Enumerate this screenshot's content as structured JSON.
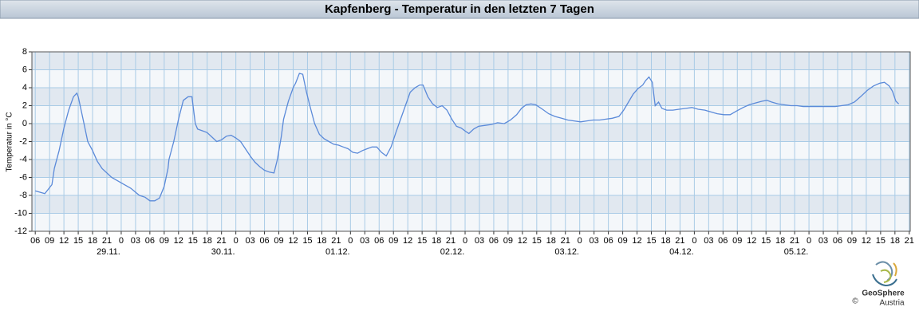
{
  "chart_data": {
    "type": "line",
    "title": "Kapfenberg - Temperatur in den letzten 7 Tagen",
    "ylabel": "Temperatur in °C",
    "color": "#5b8ad9",
    "grid": true,
    "x": [
      -18,
      -16,
      -14.5,
      -14,
      -13,
      -12,
      -11,
      -10,
      -9.3,
      -9,
      -8,
      -7,
      -6,
      -5,
      -4,
      -2,
      0,
      2,
      3.8,
      5,
      6,
      7,
      8,
      9,
      9.8,
      10,
      11,
      12,
      13,
      14,
      14.8,
      15.5,
      16,
      17,
      18,
      19,
      20,
      21,
      22,
      23,
      24,
      25,
      26,
      27,
      28,
      29,
      30,
      31,
      32,
      32.7,
      33.5,
      34,
      35,
      36,
      36.5,
      37.3,
      38,
      38.8,
      39.5,
      40.5,
      41.5,
      42.5,
      43.5,
      44.5,
      45.5,
      46.5,
      47.5,
      48.5,
      49.5,
      50.5,
      51.5,
      52.5,
      53.5,
      54.5,
      55.5,
      56.5,
      57.5,
      58.5,
      59.5,
      60.5,
      61.5,
      62.5,
      63.2,
      64.2,
      65.2,
      66.2,
      67.2,
      68.2,
      69.2,
      70.2,
      71.2,
      72.2,
      72.8,
      73.8,
      74.8,
      76.2,
      77.5,
      78.8,
      80.2,
      81.5,
      82.8,
      83.8,
      84.8,
      85.8,
      86.8,
      88.2,
      89.5,
      90.8,
      92.2,
      93.5,
      94.8,
      96.2,
      97.5,
      98.8,
      100.2,
      101.5,
      102.8,
      104.2,
      105.2,
      106.2,
      107.2,
      108.2,
      109.2,
      109.8,
      110.5,
      111.2,
      111.8,
      112.5,
      113.2,
      114.2,
      115.5,
      116.8,
      118.2,
      119.5,
      120.8,
      122.2,
      123.5,
      124.8,
      126.2,
      127.5,
      128.8,
      130.2,
      131.5,
      132.8,
      134.2,
      135.2,
      136.2,
      137.5,
      138.8,
      140.2,
      141.5,
      142.8,
      144.2,
      145.5,
      146.8,
      148.2,
      149.5,
      150.8,
      152.2,
      153.5,
      154.8,
      156.2,
      157.5,
      158.8,
      159.8,
      160.8,
      161.5,
      162.2,
      162.8
    ],
    "values": [
      -7.5,
      -7.8,
      -6.8,
      -5,
      -3,
      -0.5,
      1.5,
      3,
      3.4,
      3,
      0.5,
      -2,
      -3,
      -4.2,
      -5,
      -6,
      -6.6,
      -7.2,
      -8,
      -8.2,
      -8.6,
      -8.6,
      -8.3,
      -7,
      -5,
      -4,
      -2,
      0.5,
      2.6,
      3,
      3,
      0,
      -0.6,
      -0.8,
      -1,
      -1.5,
      -2,
      -1.8,
      -1.4,
      -1.3,
      -1.6,
      -2,
      -2.8,
      -3.6,
      -4.3,
      -4.8,
      -5.2,
      -5.4,
      -5.5,
      -4,
      -1.5,
      0.5,
      2.5,
      4,
      4.5,
      5.6,
      5.5,
      3.5,
      2,
      0,
      -1.2,
      -1.7,
      -2,
      -2.3,
      -2.4,
      -2.6,
      -2.8,
      -3.2,
      -3.3,
      -3,
      -2.8,
      -2.6,
      -2.6,
      -3.2,
      -3.6,
      -2.6,
      -1,
      0.5,
      2,
      3.5,
      4,
      4.3,
      4.3,
      3,
      2.2,
      1.8,
      2,
      1.5,
      0.5,
      -0.3,
      -0.5,
      -0.9,
      -1.1,
      -0.6,
      -0.3,
      -0.2,
      -0.1,
      0.1,
      0,
      0.4,
      1,
      1.7,
      2.1,
      2.2,
      2.1,
      1.6,
      1.1,
      0.8,
      0.6,
      0.4,
      0.3,
      0.2,
      0.3,
      0.4,
      0.4,
      0.5,
      0.6,
      0.8,
      1.5,
      2.4,
      3.3,
      3.9,
      4.3,
      4.8,
      5.2,
      4.6,
      2,
      2.4,
      1.7,
      1.5,
      1.5,
      1.6,
      1.7,
      1.8,
      1.6,
      1.5,
      1.3,
      1.1,
      1,
      1,
      1.4,
      1.8,
      2.1,
      2.3,
      2.5,
      2.6,
      2.4,
      2.2,
      2.1,
      2,
      2,
      1.9,
      1.9,
      1.9,
      1.9,
      1.9,
      1.9,
      2,
      2.1,
      2.4,
      3,
      3.7,
      4.2,
      4.5,
      4.6,
      4.2,
      3.6,
      2.5,
      2.2
    ],
    "xlim": [
      -18.7,
      165.2
    ],
    "ylim": [
      -12,
      8
    ],
    "yticks": [
      -12,
      -10,
      -8,
      -6,
      -4,
      -2,
      0,
      2,
      4,
      6,
      8
    ],
    "xticks": [
      {
        "value": -18,
        "label": "06"
      },
      {
        "value": -15,
        "label": "09"
      },
      {
        "value": -12,
        "label": "12"
      },
      {
        "value": -9,
        "label": "15"
      },
      {
        "value": -6,
        "label": "18"
      },
      {
        "value": -3,
        "label": "21"
      },
      {
        "value": 0,
        "label": "0"
      },
      {
        "value": 3,
        "label": "03"
      },
      {
        "value": 6,
        "label": "06"
      },
      {
        "value": 9,
        "label": "09"
      },
      {
        "value": 12,
        "label": "12"
      },
      {
        "value": 15,
        "label": "15"
      },
      {
        "value": 18,
        "label": "18"
      },
      {
        "value": 21,
        "label": "21"
      },
      {
        "value": 24,
        "label": "0"
      },
      {
        "value": 27,
        "label": "03"
      },
      {
        "value": 30,
        "label": "06"
      },
      {
        "value": 33,
        "label": "09"
      },
      {
        "value": 36,
        "label": "12"
      },
      {
        "value": 39,
        "label": "15"
      },
      {
        "value": 42,
        "label": "18"
      },
      {
        "value": 45,
        "label": "21"
      },
      {
        "value": 48,
        "label": "0"
      },
      {
        "value": 51,
        "label": "03"
      },
      {
        "value": 54,
        "label": "06"
      },
      {
        "value": 57,
        "label": "09"
      },
      {
        "value": 60,
        "label": "12"
      },
      {
        "value": 63,
        "label": "15"
      },
      {
        "value": 66,
        "label": "18"
      },
      {
        "value": 69,
        "label": "21"
      },
      {
        "value": 72,
        "label": "0"
      },
      {
        "value": 75,
        "label": "03"
      },
      {
        "value": 78,
        "label": "06"
      },
      {
        "value": 81,
        "label": "09"
      },
      {
        "value": 84,
        "label": "12"
      },
      {
        "value": 87,
        "label": "15"
      },
      {
        "value": 90,
        "label": "18"
      },
      {
        "value": 93,
        "label": "21"
      },
      {
        "value": 96,
        "label": "0"
      },
      {
        "value": 99,
        "label": "03"
      },
      {
        "value": 102,
        "label": "06"
      },
      {
        "value": 105,
        "label": "09"
      },
      {
        "value": 108,
        "label": "12"
      },
      {
        "value": 111,
        "label": "15"
      },
      {
        "value": 114,
        "label": "18"
      },
      {
        "value": 117,
        "label": "21"
      },
      {
        "value": 120,
        "label": "0"
      },
      {
        "value": 123,
        "label": "03"
      },
      {
        "value": 126,
        "label": "06"
      },
      {
        "value": 129,
        "label": "09"
      },
      {
        "value": 132,
        "label": "12"
      },
      {
        "value": 135,
        "label": "15"
      },
      {
        "value": 138,
        "label": "18"
      },
      {
        "value": 141,
        "label": "21"
      },
      {
        "value": 144,
        "label": "0"
      },
      {
        "value": 147,
        "label": "03"
      },
      {
        "value": 150,
        "label": "06"
      },
      {
        "value": 153,
        "label": "09"
      },
      {
        "value": 156,
        "label": "12"
      },
      {
        "value": 159,
        "label": "15"
      },
      {
        "value": 162,
        "label": "18"
      },
      {
        "value": 165,
        "label": "21"
      }
    ],
    "date_ticks": [
      {
        "value": 0,
        "label": "29.11."
      },
      {
        "value": 24,
        "label": "30.11."
      },
      {
        "value": 48,
        "label": "01.12."
      },
      {
        "value": 72,
        "label": "02.12."
      },
      {
        "value": 96,
        "label": "03.12."
      },
      {
        "value": 120,
        "label": "04.12."
      },
      {
        "value": 144,
        "label": "05.12."
      }
    ],
    "logo": {
      "name": "GeoSphere",
      "sub": "Austria",
      "copyright": "©"
    }
  }
}
